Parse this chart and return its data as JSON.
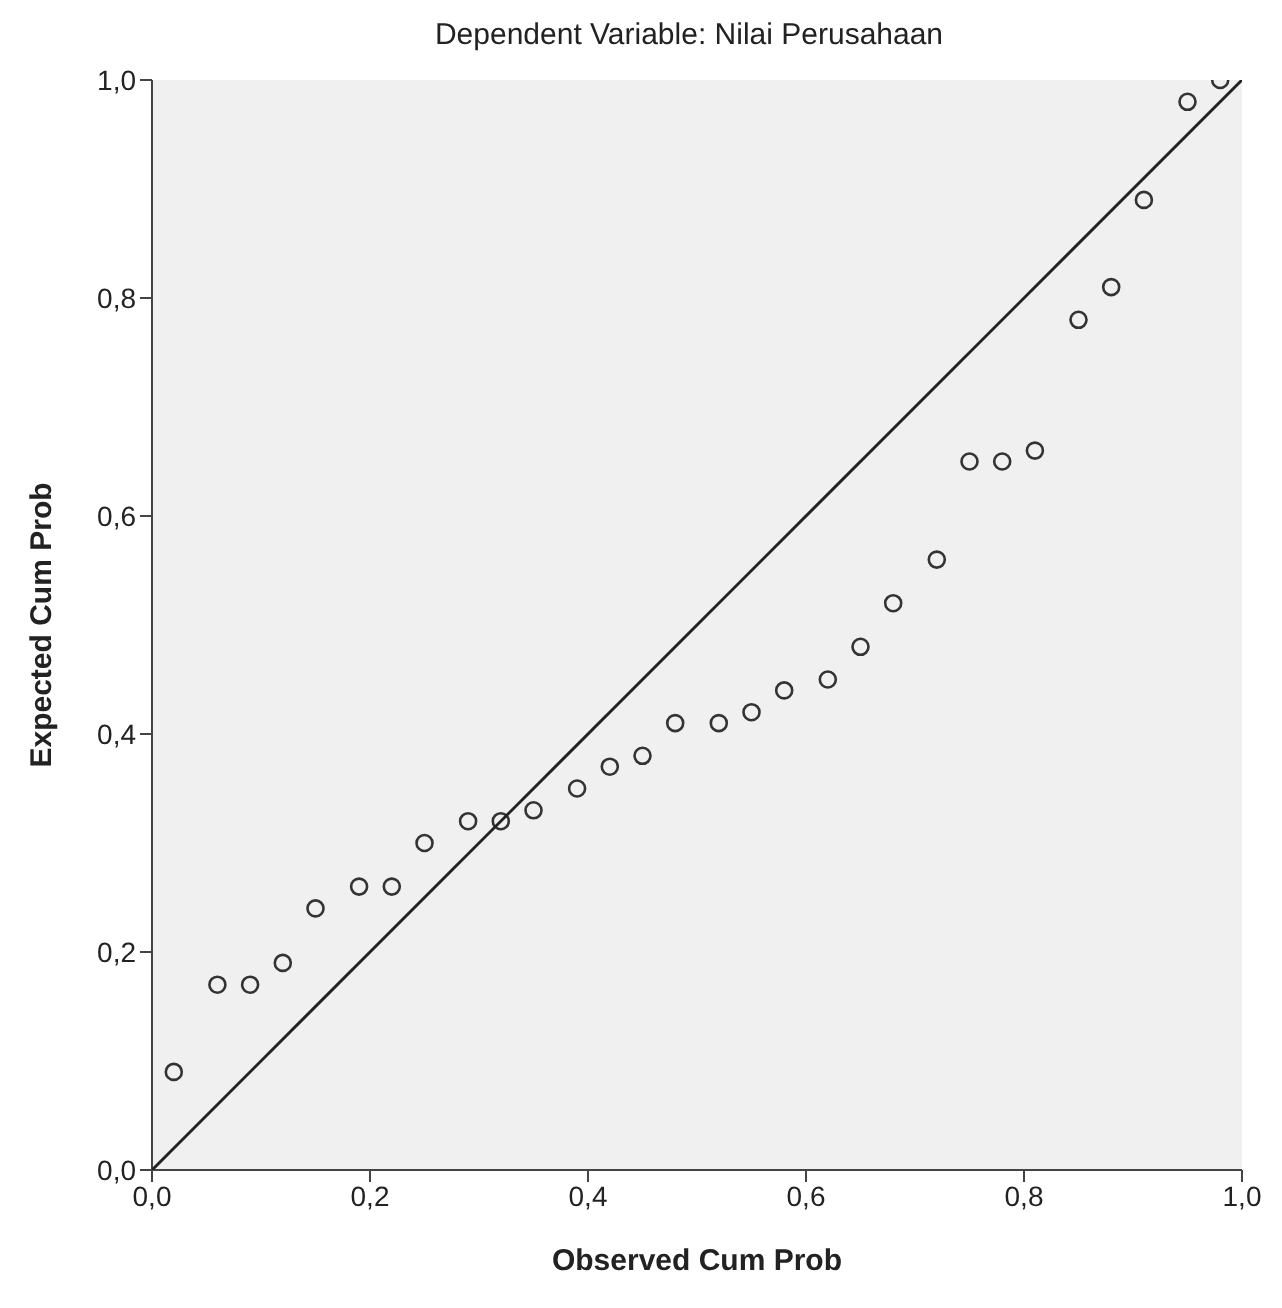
{
  "chart_data": {
    "type": "scatter",
    "title": "Dependent Variable: Nilai Perusahaan",
    "xlabel": "Observed Cum Prob",
    "ylabel": "Expected Cum Prob",
    "xlim": [
      0,
      1
    ],
    "ylim": [
      0,
      1
    ],
    "xticks": [
      {
        "value": 0,
        "label": "0,0"
      },
      {
        "value": 0.2,
        "label": "0,2"
      },
      {
        "value": 0.4,
        "label": "0,4"
      },
      {
        "value": 0.6,
        "label": "0,6"
      },
      {
        "value": 0.8,
        "label": "0,8"
      },
      {
        "value": 1,
        "label": "1,0"
      }
    ],
    "yticks": [
      {
        "value": 0,
        "label": "0,0"
      },
      {
        "value": 0.2,
        "label": "0,2"
      },
      {
        "value": 0.4,
        "label": "0,4"
      },
      {
        "value": 0.6,
        "label": "0,6"
      },
      {
        "value": 0.8,
        "label": "0,8"
      },
      {
        "value": 1,
        "label": "1,0"
      }
    ],
    "grid": false,
    "series": [
      {
        "marker": "circle",
        "color": "#333333",
        "x": [
          0.02,
          0.06,
          0.09,
          0.12,
          0.15,
          0.19,
          0.22,
          0.25,
          0.29,
          0.32,
          0.35,
          0.39,
          0.42,
          0.45,
          0.48,
          0.52,
          0.55,
          0.58,
          0.62,
          0.65,
          0.68,
          0.72,
          0.75,
          0.78,
          0.81,
          0.85,
          0.88,
          0.91,
          0.95,
          0.98
        ],
        "values": [
          0.09,
          0.17,
          0.17,
          0.19,
          0.24,
          0.26,
          0.26,
          0.3,
          0.32,
          0.32,
          0.33,
          0.35,
          0.37,
          0.38,
          0.41,
          0.41,
          0.42,
          0.44,
          0.45,
          0.48,
          0.52,
          0.56,
          0.65,
          0.65,
          0.66,
          0.78,
          0.81,
          0.89,
          0.98,
          1.0
        ]
      },
      {
        "type": "line",
        "marker": "none",
        "color": "#222222",
        "x": [
          0,
          1
        ],
        "values": [
          0,
          1
        ]
      }
    ]
  }
}
